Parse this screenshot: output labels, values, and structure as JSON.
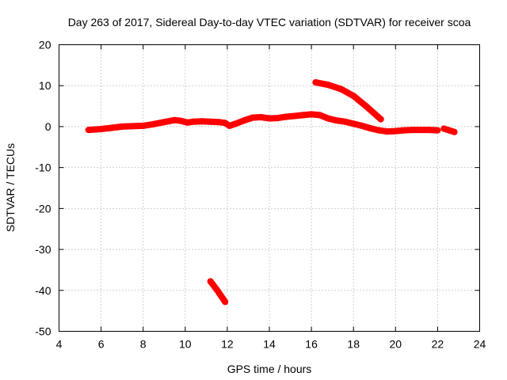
{
  "chart_data": {
    "type": "line",
    "title": "Day 263 of 2017, Sidereal Day-to-day VTEC variation (SDTVAR) for receiver scoa",
    "xlabel": "GPS time / hours",
    "ylabel": "SDTVAR / TECUs",
    "xlim": [
      4,
      24
    ],
    "ylim": [
      -50,
      20
    ],
    "xticks": [
      4,
      6,
      8,
      10,
      12,
      14,
      16,
      18,
      20,
      22,
      24
    ],
    "yticks": [
      -50,
      -40,
      -30,
      -20,
      -10,
      0,
      10,
      20
    ],
    "grid": true,
    "color": "#ff0000",
    "series": [
      {
        "name": "SDTVAR main",
        "x": [
          5.4,
          6.0,
          6.5,
          7.0,
          7.5,
          8.0,
          8.5,
          9.0,
          9.5,
          9.8,
          10.1,
          10.4,
          10.8,
          11.2,
          11.6,
          11.9,
          12.1,
          12.4,
          12.8,
          13.2,
          13.6,
          14.0,
          14.4,
          14.8,
          15.2,
          15.6,
          16.0,
          16.4,
          16.8,
          17.2,
          17.6,
          18.0,
          18.4,
          18.8,
          19.2,
          19.6,
          20.0,
          20.4,
          20.8,
          21.2,
          21.6,
          22.0
        ],
        "y": [
          -0.8,
          -0.6,
          -0.3,
          0.0,
          0.1,
          0.2,
          0.6,
          1.1,
          1.6,
          1.4,
          1.0,
          1.2,
          1.3,
          1.2,
          1.1,
          0.9,
          0.2,
          0.7,
          1.5,
          2.2,
          2.3,
          2.0,
          2.1,
          2.4,
          2.6,
          2.8,
          3.0,
          2.8,
          2.0,
          1.5,
          1.2,
          0.7,
          0.2,
          -0.4,
          -0.9,
          -1.2,
          -1.1,
          -0.9,
          -0.8,
          -0.8,
          -0.8,
          -0.9
        ]
      },
      {
        "name": "SDTVAR segment 2",
        "x": [
          22.3,
          22.6,
          22.8
        ],
        "y": [
          -0.5,
          -1.0,
          -1.3
        ]
      },
      {
        "name": "SDTVAR segment 3",
        "x": [
          16.2,
          16.8,
          17.4,
          18.0,
          18.6,
          19.3
        ],
        "y": [
          10.8,
          10.2,
          9.2,
          7.5,
          5.0,
          1.8
        ]
      },
      {
        "name": "SDTVAR segment 4",
        "x": [
          11.2,
          11.5,
          11.9
        ],
        "y": [
          -37.8,
          -39.8,
          -42.8
        ]
      }
    ]
  }
}
